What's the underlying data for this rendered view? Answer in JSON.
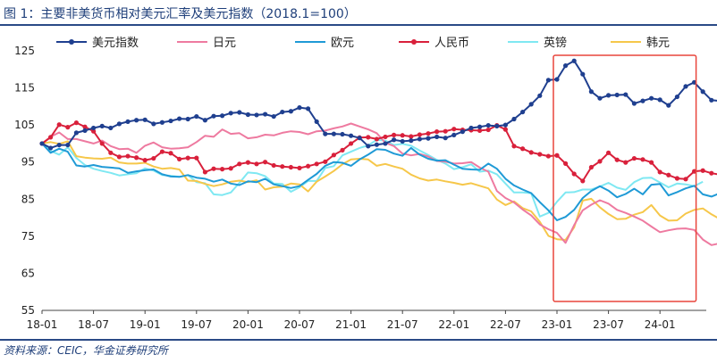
{
  "title": "图 1：主要非美货币相对美元汇率及美元指数（2018.1=100）",
  "source": "资料来源：CEIC，华金证券研究所",
  "colors": {
    "usd_index": "#1f3f8f",
    "jpy": "#ee7aa0",
    "eur": "#1f9ad6",
    "cny": "#d9203b",
    "gbp": "#7fe8f2",
    "krw": "#f6c74a",
    "highlight": "#e8453c"
  },
  "chart_data": {
    "type": "line",
    "ylim": [
      55,
      125
    ],
    "yticks": [
      55,
      65,
      75,
      85,
      95,
      105,
      115,
      125
    ],
    "xticks": [
      "18-01",
      "18-07",
      "19-01",
      "19-07",
      "20-01",
      "20-07",
      "21-01",
      "21-07",
      "22-01",
      "22-07",
      "23-01",
      "23-07",
      "24-01"
    ],
    "x_start": "2018-01",
    "highlight_range": [
      "2023-01",
      "2024-05"
    ],
    "series": [
      {
        "name": "美元指数",
        "key": "usd_index",
        "markers": true,
        "values": [
          100,
          98.8,
          99.6,
          99.6,
          102.9,
          103.5,
          104.2,
          104.7,
          104.2,
          105.3,
          105.9,
          106.3,
          106.4,
          105.3,
          105.7,
          106.1,
          106.7,
          106.6,
          107.3,
          106.3,
          107.4,
          107.5,
          108.2,
          108.4,
          107.8,
          107.7,
          107.9,
          107.3,
          108.5,
          108.7,
          109.7,
          109.4,
          105.9,
          102.6,
          102.6,
          102.5,
          102.1,
          101.5,
          99.3,
          99.7,
          100.0,
          101.0,
          100.6,
          100.8,
          101.2,
          101.4,
          101.8,
          101.5,
          102.3,
          103.2,
          104.2,
          104.5,
          104.9,
          104.7,
          105.0,
          106.6,
          108.5,
          110.6,
          112.9,
          117.1,
          117.3,
          121.0,
          122.3,
          118.7,
          114.0,
          112.2,
          113.0,
          113.1,
          113.2,
          110.8,
          111.5,
          112.2,
          111.8,
          110.3,
          112.6,
          115.4,
          116.5,
          114.0,
          111.7,
          111.5,
          113.1,
          112.8,
          112.7,
          115.1,
          114.1
        ]
      },
      {
        "name": "日元",
        "key": "jpy",
        "markers": false,
        "values": [
          100,
          101.8,
          103.0,
          101.2,
          101.2,
          100.6,
          100.0,
          100.8,
          99.3,
          98.5,
          98.6,
          97.5,
          99.4,
          100.3,
          99.0,
          98.6,
          98.7,
          99.0,
          100.4,
          102.1,
          101.8,
          103.8,
          102.6,
          102.8,
          101.4,
          101.7,
          102.4,
          102.2,
          102.9,
          103.3,
          103.1,
          102.5,
          103.3,
          103.5,
          104.1,
          104.6,
          105.4,
          104.6,
          103.8,
          102.8,
          100.2,
          99.3,
          97.3,
          96.8,
          97.2,
          96.5,
          95.3,
          95.1,
          94.6,
          94.7,
          95.0,
          93.5,
          92.4,
          87.2,
          85.3,
          84.1,
          82.2,
          80.6,
          78.2,
          76.9,
          75.9,
          73.2,
          78.0,
          82.0,
          83.5,
          84.7,
          83.8,
          82.1,
          81.3,
          80.3,
          79.2,
          77.6,
          76.1,
          76.6,
          77.0,
          77.1,
          76.7,
          74.1,
          72.6,
          73.1,
          74.5,
          77.6,
          77.3,
          73.6,
          69.2,
          69.4
        ]
      },
      {
        "name": "欧元",
        "key": "eur",
        "markers": false,
        "values": [
          100,
          97.5,
          98.6,
          97.8,
          94.1,
          93.8,
          94.2,
          93.7,
          93.5,
          93.3,
          92.1,
          92.5,
          92.8,
          93.0,
          91.7,
          91.1,
          91.0,
          91.5,
          90.8,
          90.5,
          89.7,
          90.3,
          89.2,
          88.8,
          89.8,
          89.6,
          90.5,
          89.0,
          88.5,
          88.0,
          88.5,
          90.2,
          91.8,
          94.0,
          95.0,
          94.8,
          94.0,
          95.7,
          97.0,
          98.5,
          98.3,
          97.3,
          96.7,
          98.8,
          97.0,
          95.9,
          95.4,
          95.5,
          94.3,
          93.2,
          93.0,
          92.9,
          94.6,
          93.2,
          90.5,
          88.7,
          87.6,
          86.6,
          84.2,
          82.0,
          79.3,
          80.2,
          82.1,
          85.3,
          87.2,
          88.5,
          87.3,
          85.5,
          86.4,
          87.8,
          86.3,
          88.9,
          89.1,
          86.0,
          86.9,
          87.9,
          88.6,
          86.3,
          85.7,
          86.6,
          87.5,
          86.5,
          86.6,
          86.2,
          86.0,
          87.2
        ]
      },
      {
        "name": "人民币",
        "key": "cny",
        "markers": true,
        "values": [
          100,
          101.7,
          105.1,
          104.4,
          105.6,
          104.5,
          103.3,
          100.0,
          97.5,
          96.4,
          96.6,
          96.2,
          95.5,
          96.0,
          97.8,
          97.4,
          95.8,
          96.1,
          96.1,
          92.3,
          93.2,
          93.1,
          93.3,
          94.5,
          94.9,
          94.5,
          95.0,
          94.1,
          93.8,
          93.6,
          93.4,
          93.9,
          94.5,
          95.1,
          96.9,
          98.2,
          100.0,
          101.6,
          101.7,
          101.2,
          101.8,
          102.3,
          102.2,
          101.9,
          102.4,
          102.7,
          103.2,
          103.3,
          103.9,
          103.7,
          103.6,
          103.5,
          103.7,
          104.9,
          103.8,
          99.3,
          98.6,
          97.6,
          97.1,
          96.6,
          96.8,
          94.6,
          91.8,
          89.9,
          93.6,
          95.2,
          97.5,
          95.6,
          94.9,
          96.0,
          95.7,
          94.9,
          92.3,
          91.5,
          90.6,
          90.4,
          92.5,
          92.7,
          92.0,
          91.6,
          91.4,
          91.3
        ]
      },
      {
        "name": "英镑",
        "key": "gbp",
        "markers": false,
        "values": [
          100,
          98.0,
          97.0,
          99.0,
          96.1,
          94.2,
          93.2,
          92.6,
          92.1,
          91.4,
          91.7,
          92.0,
          93.3,
          92.7,
          91.5,
          91.3,
          91.0,
          91.5,
          89.6,
          89.3,
          86.3,
          86.1,
          86.8,
          89.4,
          92.2,
          92.0,
          91.2,
          89.2,
          89.1,
          87.0,
          88.2,
          89.9,
          89.9,
          93.4,
          93.9,
          96.8,
          97.8,
          98.8,
          99.5,
          101.0,
          100.8,
          99.6,
          99.9,
          99.4,
          98.1,
          96.9,
          95.6,
          94.6,
          93.1,
          93.6,
          94.4,
          92.4,
          92.7,
          91.7,
          89.2,
          86.8,
          86.8,
          86.6,
          80.3,
          81.3,
          84.3,
          86.8,
          86.9,
          87.6,
          87.6,
          88.4,
          89.4,
          88.1,
          87.5,
          89.6,
          90.7,
          90.8,
          89.5,
          88.2,
          89.2,
          89.0,
          88.5,
          89.7
        ]
      },
      {
        "name": "韩元",
        "key": "krw",
        "markers": false,
        "values": [
          100,
          100.4,
          99.9,
          100.6,
          96.6,
          96.2,
          96.0,
          95.9,
          96.2,
          94.9,
          94.6,
          94.6,
          94.8,
          93.8,
          93.2,
          93.4,
          93.0,
          90.0,
          89.9,
          89.1,
          88.5,
          89.0,
          89.7,
          90.0,
          89.6,
          90.1,
          87.6,
          88.2,
          88.4,
          89.2,
          89.0,
          87.1,
          89.7,
          91.1,
          92.6,
          94.4,
          95.7,
          95.9,
          95.7,
          94.0,
          94.5,
          93.8,
          93.2,
          91.6,
          90.6,
          90.0,
          90.3,
          89.8,
          89.4,
          88.9,
          89.3,
          88.6,
          87.9,
          84.9,
          83.4,
          84.4,
          82.6,
          81.7,
          78.9,
          75.1,
          74.2,
          74.0,
          77.4,
          84.6,
          85.1,
          82.8,
          81.0,
          79.6,
          79.7,
          80.8,
          81.5,
          83.4,
          80.6,
          79.2,
          79.3,
          81.1,
          82.1,
          82.5,
          80.9,
          79.6,
          79.7,
          80.6,
          77.5,
          77.3,
          77.3
        ]
      }
    ]
  }
}
